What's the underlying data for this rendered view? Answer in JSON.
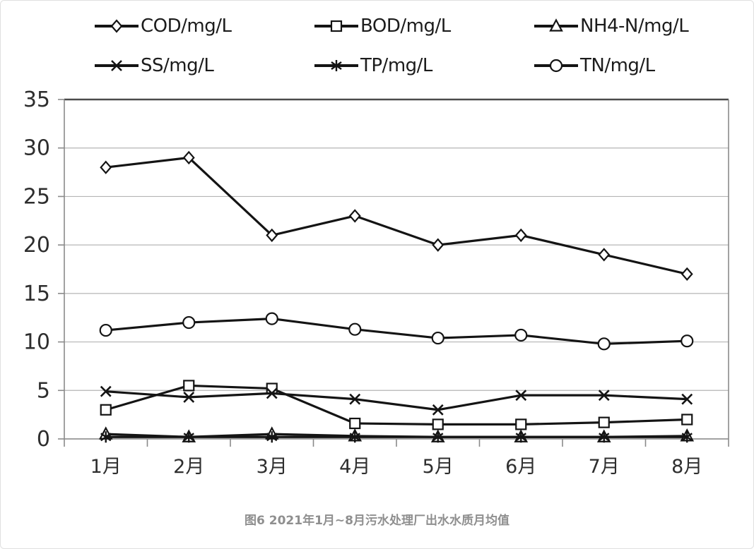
{
  "figure": {
    "caption": "图6 2021年1月~8月污水处理厂出水水质月均值"
  },
  "chart_data": {
    "type": "line",
    "title": "图6 2021年1月~8月污水处理厂出水水质月均值",
    "categories": [
      "1月",
      "2月",
      "3月",
      "4月",
      "5月",
      "6月",
      "7月",
      "8月"
    ],
    "series": [
      {
        "name": "COD/mg/L",
        "marker": "diamond",
        "values": [
          28,
          29,
          21,
          23,
          20,
          21,
          19,
          17
        ]
      },
      {
        "name": "BOD/mg/L",
        "marker": "square",
        "values": [
          3,
          5.5,
          5.2,
          1.6,
          1.5,
          1.5,
          1.7,
          2
        ]
      },
      {
        "name": "NH4-N/mg/L",
        "marker": "triangle",
        "values": [
          0.5,
          0.2,
          0.5,
          0.3,
          0.2,
          0.2,
          0.2,
          0.3
        ]
      },
      {
        "name": "SS/mg/L",
        "marker": "x",
        "values": [
          4.9,
          4.3,
          4.7,
          4.1,
          3.0,
          4.5,
          4.5,
          4.1
        ]
      },
      {
        "name": "TP/mg/L",
        "marker": "asterisk",
        "values": [
          0.2,
          0.2,
          0.2,
          0.2,
          0.2,
          0.2,
          0.2,
          0.2
        ]
      },
      {
        "name": "TN/mg/L",
        "marker": "circle",
        "values": [
          11.2,
          12.0,
          12.4,
          11.3,
          10.4,
          10.7,
          9.8,
          10.1
        ]
      }
    ],
    "ylim": [
      0,
      35
    ],
    "ytick_step": 5,
    "ytick_labels": [
      "0",
      "5",
      "10",
      "15",
      "20",
      "25",
      "30",
      "35"
    ],
    "xlabel": "",
    "ylabel": "",
    "grid": true,
    "legend_position": "top",
    "line_color": "#141414",
    "grid_color": "#b5b5b5",
    "axis_color": "#8a8a8a",
    "top_border_color": "#4a4a4a",
    "tick_text_color": "#2e2e2e",
    "caption_color": "#8f8f8f"
  }
}
